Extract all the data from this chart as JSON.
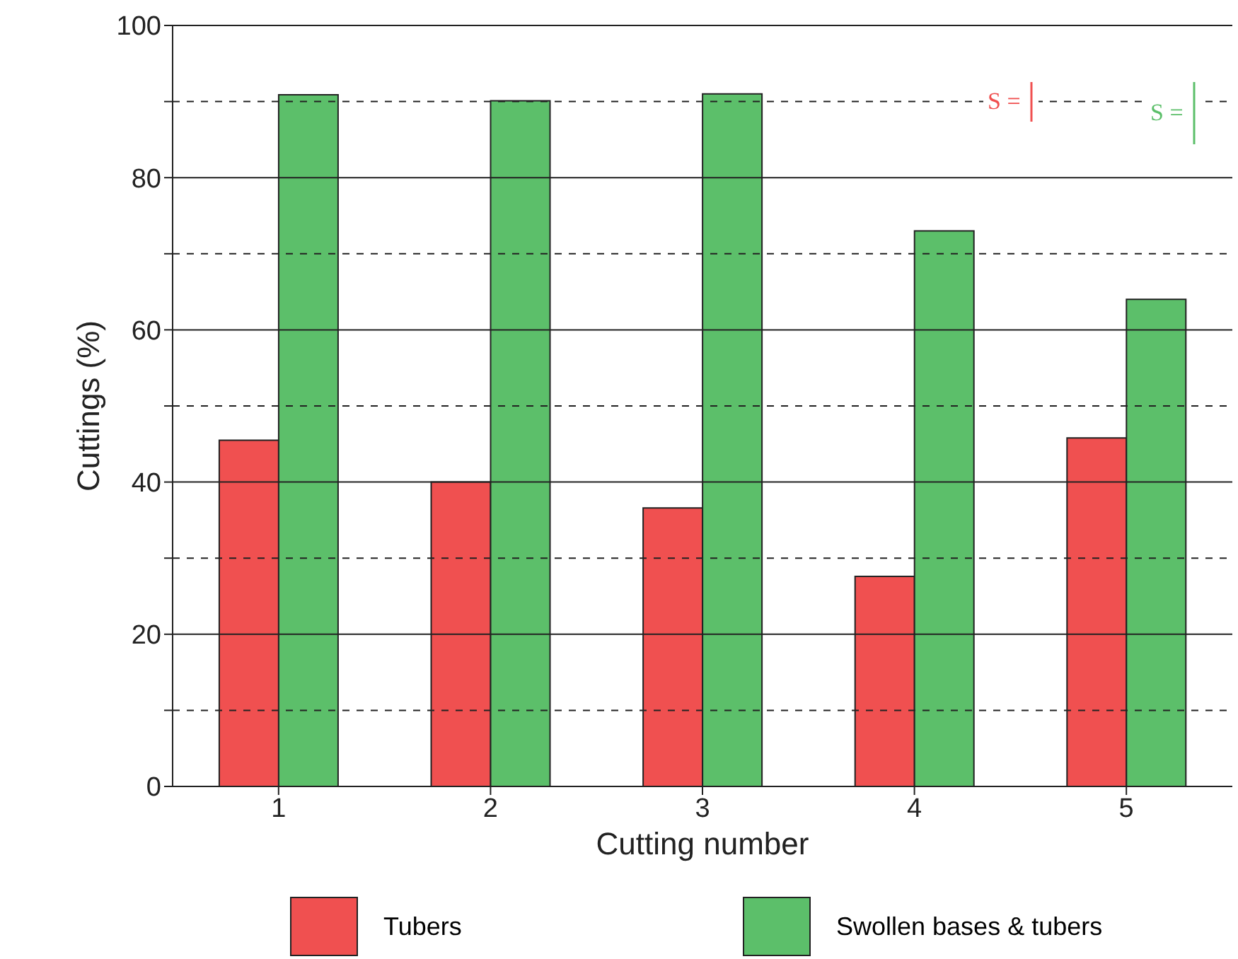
{
  "chart_data": {
    "type": "bar",
    "xlabel": "Cutting number",
    "ylabel": "Cuttings (%)",
    "categories": [
      "1",
      "2",
      "3",
      "4",
      "5"
    ],
    "series": [
      {
        "name": "Tubers",
        "color": "#f05050",
        "values": [
          45.5,
          40,
          36.6,
          27.6,
          45.8
        ]
      },
      {
        "name": "Swollen bases & tubers",
        "color": "#5cbf6a",
        "values": [
          90.9,
          90.1,
          91,
          73,
          64
        ]
      }
    ],
    "ylim": [
      0,
      100
    ],
    "yticks": [
      0,
      {
        "value": 10,
        "label": null
      },
      20,
      {
        "value": 30,
        "label": null
      },
      40,
      {
        "value": 50,
        "label": null
      },
      60,
      {
        "value": 70,
        "label": null
      },
      80,
      {
        "value": 90,
        "label": null
      },
      100
    ],
    "grid": "y",
    "legend": "bottom",
    "annotations": [
      "S =",
      "S ="
    ]
  }
}
